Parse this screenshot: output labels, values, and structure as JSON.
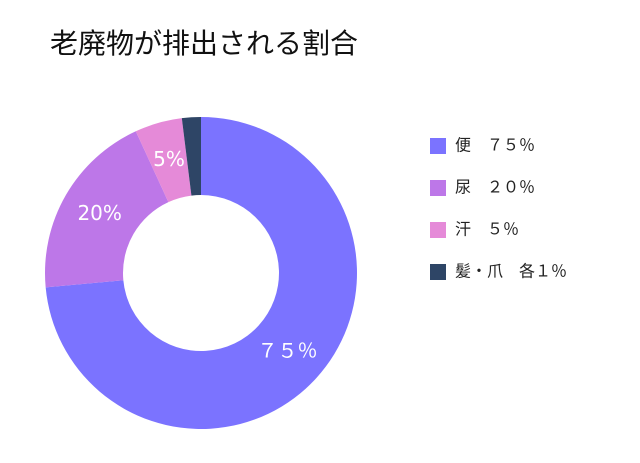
{
  "chart_data": {
    "type": "donut",
    "title": "老廃物が排出される割合",
    "categories": [
      "便　７５％",
      "尿　２０％",
      "汗　５％",
      "髪・爪　各１％"
    ],
    "values": [
      75,
      20,
      5,
      2
    ],
    "value_labels": [
      "７５％",
      "20%",
      "5%",
      null
    ],
    "colors": [
      "#7b73ff",
      "#bd77e8",
      "#e58ad8",
      "#2e4566"
    ],
    "legend": "right"
  }
}
